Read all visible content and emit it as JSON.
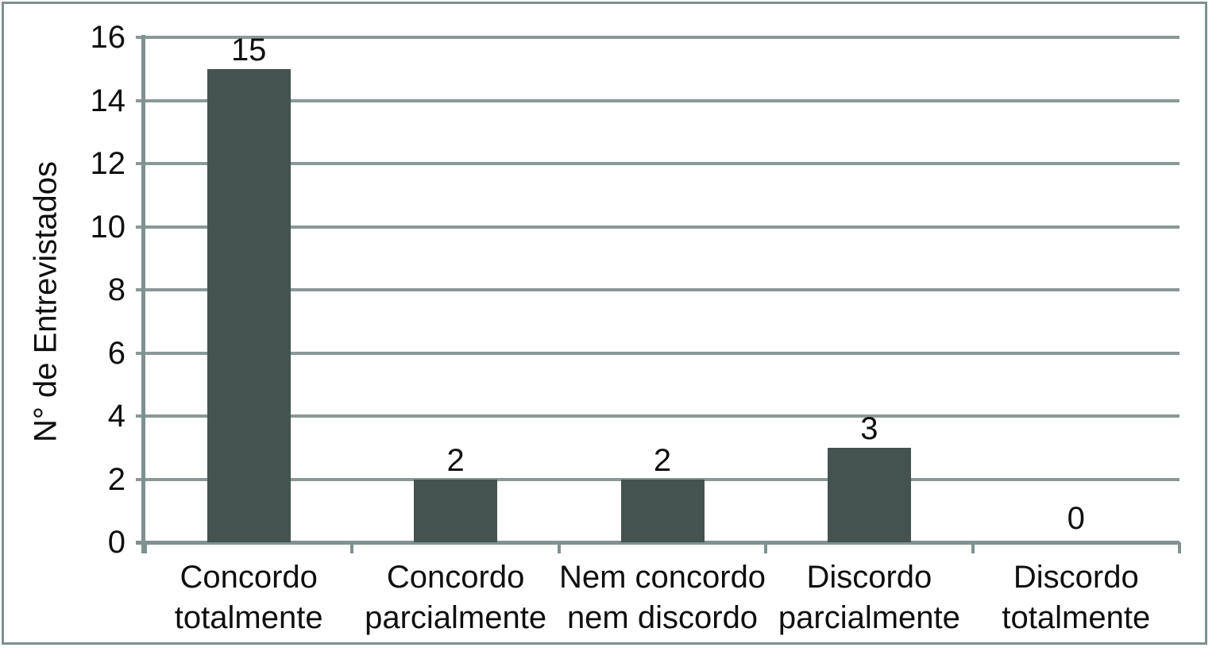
{
  "chart_data": {
    "type": "bar",
    "title": "",
    "ylabel": "N° de Entrevistados",
    "xlabel": "",
    "categories": [
      "Concordo totalmente",
      "Concordo parcialmente",
      "Nem concordo nem discordo",
      "Discordo parcialmente",
      "Discordo totalmente"
    ],
    "category_lines": [
      [
        "Concordo",
        "totalmente"
      ],
      [
        "Concordo",
        "parcialmente"
      ],
      [
        "Nem concordo",
        "nem discordo"
      ],
      [
        "Discordo",
        "parcialmente"
      ],
      [
        "Discordo",
        "totalmente"
      ]
    ],
    "values": [
      15,
      2,
      2,
      3,
      0
    ],
    "data_labels": [
      "15",
      "2",
      "2",
      "3",
      "0"
    ],
    "y_ticks": [
      0,
      2,
      4,
      6,
      8,
      10,
      12,
      14,
      16
    ],
    "ylim": [
      0,
      16
    ],
    "grid": "horizontal",
    "legend_position": "none",
    "colors": {
      "bar": "#445250",
      "gridline": "#8a9897",
      "axis": "#7f9191",
      "frame_border": "#7d9090",
      "text": "#0f0f0f",
      "background": "#ffffff"
    }
  }
}
